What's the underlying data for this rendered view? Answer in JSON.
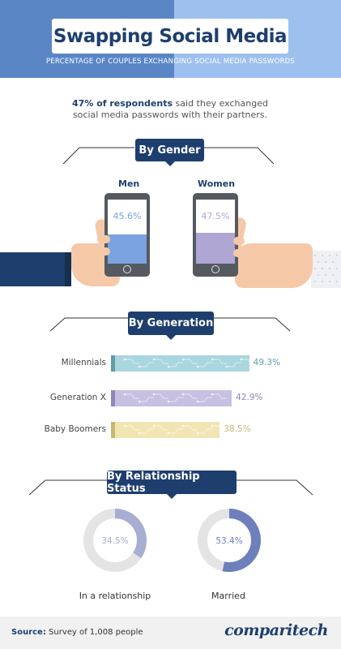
{
  "header": {
    "title": "Swapping Social Media",
    "subtitle": "PERCENTAGE OF COUPLES EXCHANGING SOCIAL MEDIA PASSWORDS"
  },
  "intro": {
    "highlight": "47% of respondents",
    "rest_line1": " said they exchanged",
    "line2": "social media passwords with their partners."
  },
  "sections": {
    "gender": "By Gender",
    "generation": "By Generation",
    "relationship": "By Relationship Status"
  },
  "footer": {
    "source_label": "Source:",
    "source_text": " Survey of 1,008 people",
    "brand": "comparitech"
  },
  "colors": {
    "navy": "#1e3f6e",
    "men": "#7aa3df",
    "women": "#b0a6d4",
    "millennials": "#a9d6df",
    "millennials_dark": "#5f9ea7",
    "genx": "#c7c0e2",
    "genx_dark": "#8f86bf",
    "boomers": "#f1e6b3",
    "boomers_dark": "#c6b872",
    "donut_relationship": "#a7aed2",
    "donut_married": "#6e80bc",
    "donut_track": "#e4e4e4"
  },
  "chart_data": [
    {
      "type": "bar",
      "title": "By Gender",
      "categories": [
        "Men",
        "Women"
      ],
      "values": [
        45.6,
        47.5
      ],
      "value_labels": [
        "45.6%",
        "47.5%"
      ],
      "unit": "%"
    },
    {
      "type": "bar",
      "title": "By Generation",
      "categories": [
        "Millennials",
        "Generation X",
        "Baby Boomers"
      ],
      "values": [
        49.3,
        42.9,
        38.5
      ],
      "value_labels": [
        "49.3%",
        "42.9%",
        "38.5%"
      ],
      "unit": "%"
    },
    {
      "type": "pie",
      "title": "By Relationship Status",
      "categories": [
        "In a relationship",
        "Married"
      ],
      "values": [
        34.5,
        53.4
      ],
      "value_labels": [
        "34.5%",
        "53.4%"
      ],
      "unit": "%"
    }
  ]
}
